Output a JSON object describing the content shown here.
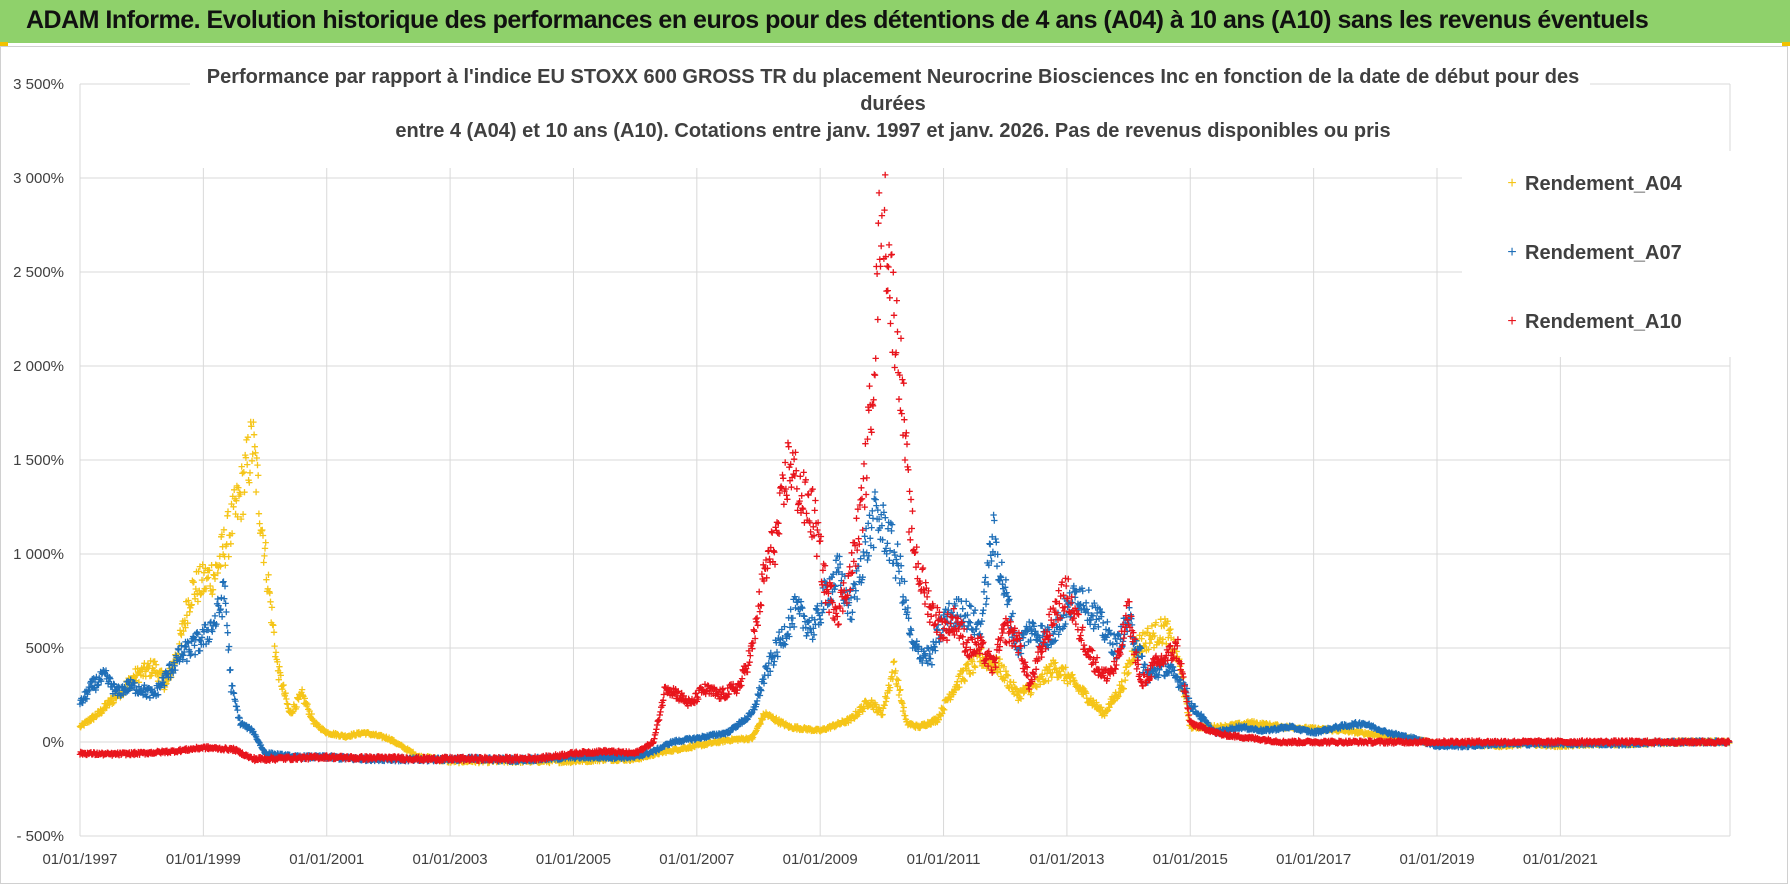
{
  "header": {
    "title": "ADAM Informe. Evolution historique des performances en euros pour des détentions de 4 ans (A04) à 10 ans (A10) sans les revenus éventuels"
  },
  "chart_data": {
    "type": "scatter",
    "title_lines": [
      "Performance par rapport à l'indice EU STOXX 600 GROSS TR  du placement Neurocrine Biosciences Inc en fonction de la date de début pour des",
      "durées",
      "entre 4 (A04) et 10 ans (A10). Cotations entre janv. 1997 et janv. 2026. Pas de revenus disponibles ou pris"
    ],
    "xlabel": "",
    "ylabel": "",
    "x_range": [
      1997.0,
      2023.75
    ],
    "ylim": [
      -500,
      3500
    ],
    "y_ticks": [
      {
        "value": -500,
        "label": "- 500%"
      },
      {
        "value": 0,
        "label": "0%"
      },
      {
        "value": 500,
        "label": "500%"
      },
      {
        "value": 1000,
        "label": "1 000%"
      },
      {
        "value": 1500,
        "label": "1 500%"
      },
      {
        "value": 2000,
        "label": "2 000%"
      },
      {
        "value": 2500,
        "label": "2 500%"
      },
      {
        "value": 3000,
        "label": "3 000%"
      },
      {
        "value": 3500,
        "label": "3 500%"
      }
    ],
    "x_ticks": [
      {
        "value": 1997,
        "label": "01/01/1997"
      },
      {
        "value": 1999,
        "label": "01/01/1999"
      },
      {
        "value": 2001,
        "label": "01/01/2001"
      },
      {
        "value": 2003,
        "label": "01/01/2003"
      },
      {
        "value": 2005,
        "label": "01/01/2005"
      },
      {
        "value": 2007,
        "label": "01/01/2007"
      },
      {
        "value": 2009,
        "label": "01/01/2009"
      },
      {
        "value": 2011,
        "label": "01/01/2011"
      },
      {
        "value": 2013,
        "label": "01/01/2013"
      },
      {
        "value": 2015,
        "label": "01/01/2015"
      },
      {
        "value": 2017,
        "label": "01/01/2017"
      },
      {
        "value": 2019,
        "label": "01/01/2019"
      },
      {
        "value": 2021,
        "label": "01/01/2021"
      }
    ],
    "grid": true,
    "legend_position": "top-right",
    "marker": "+",
    "series": [
      {
        "name": "Rendement_A04",
        "color": "#f5c518",
        "x": [
          1997.0,
          1997.3,
          1997.6,
          1997.9,
          1998.2,
          1998.4,
          1998.6,
          1998.8,
          1999.0,
          1999.2,
          1999.4,
          1999.6,
          1999.8,
          2000.0,
          2000.2,
          2000.4,
          2000.6,
          2000.8,
          2001.0,
          2001.3,
          2001.6,
          2002.0,
          2002.5,
          2003.0,
          2003.5,
          2004.0,
          2004.5,
          2005.0,
          2005.5,
          2006.0,
          2006.5,
          2007.0,
          2007.5,
          2007.9,
          2008.1,
          2008.5,
          2009.0,
          2009.5,
          2009.8,
          2010.0,
          2010.2,
          2010.4,
          2010.6,
          2010.9,
          2011.1,
          2011.3,
          2011.6,
          2011.9,
          2012.2,
          2012.5,
          2012.8,
          2013.0,
          2013.3,
          2013.6,
          2013.9,
          2014.1,
          2014.3,
          2014.6,
          2014.8,
          2015.0,
          2015.5,
          2016.0,
          2016.5,
          2017.0,
          2017.5,
          2018.0,
          2018.5,
          2019.0,
          2019.5,
          2020.0,
          2020.5,
          2021.0,
          2021.5,
          2022.0,
          2022.5,
          2023.0,
          2023.5,
          2023.75
        ],
        "y": [
          80,
          150,
          250,
          350,
          400,
          300,
          500,
          800,
          850,
          900,
          1100,
          1300,
          1600,
          1000,
          400,
          150,
          250,
          100,
          50,
          30,
          50,
          20,
          -80,
          -100,
          -100,
          -100,
          -100,
          -100,
          -90,
          -90,
          -50,
          -20,
          10,
          20,
          150,
          80,
          60,
          120,
          220,
          150,
          400,
          100,
          80,
          120,
          250,
          350,
          450,
          400,
          250,
          300,
          400,
          350,
          250,
          150,
          300,
          500,
          550,
          600,
          450,
          80,
          80,
          100,
          80,
          70,
          60,
          40,
          20,
          -10,
          -10,
          -20,
          -10,
          -20,
          -10,
          -10,
          -5,
          0,
          0,
          0
        ]
      },
      {
        "name": "Rendement_A07",
        "color": "#1f6fb8",
        "x": [
          1997.0,
          1997.2,
          1997.4,
          1997.6,
          1997.8,
          1998.0,
          1998.2,
          1998.4,
          1998.6,
          1998.8,
          1999.0,
          1999.2,
          1999.35,
          1999.45,
          1999.6,
          1999.8,
          2000.0,
          2000.5,
          2001.0,
          2001.5,
          2002.0,
          2002.5,
          2003.0,
          2003.5,
          2004.0,
          2004.5,
          2005.0,
          2005.5,
          2006.0,
          2006.3,
          2006.6,
          2007.0,
          2007.5,
          2007.9,
          2008.1,
          2008.3,
          2008.6,
          2008.9,
          2009.1,
          2009.3,
          2009.5,
          2009.7,
          2009.9,
          2010.1,
          2010.3,
          2010.5,
          2010.8,
          2011.0,
          2011.3,
          2011.6,
          2011.8,
          2012.0,
          2012.2,
          2012.4,
          2012.7,
          2013.0,
          2013.2,
          2013.5,
          2013.8,
          2014.0,
          2014.3,
          2014.6,
          2014.9,
          2015.0,
          2015.4,
          2015.8,
          2016.2,
          2016.6,
          2017.0,
          2017.4,
          2017.8,
          2018.2,
          2018.6,
          2019.0,
          2019.5,
          2020.0,
          2020.5,
          2021.0,
          2021.5,
          2022.0,
          2022.5,
          2023.0,
          2023.75
        ],
        "y": [
          200,
          300,
          350,
          260,
          300,
          280,
          250,
          350,
          450,
          500,
          550,
          650,
          800,
          300,
          100,
          60,
          -60,
          -80,
          -80,
          -90,
          -90,
          -95,
          -90,
          -90,
          -95,
          -90,
          -80,
          -80,
          -80,
          -50,
          0,
          20,
          50,
          150,
          350,
          500,
          700,
          600,
          800,
          900,
          700,
          1000,
          1200,
          1100,
          900,
          500,
          450,
          650,
          700,
          600,
          1100,
          800,
          500,
          600,
          550,
          700,
          800,
          650,
          500,
          650,
          350,
          400,
          300,
          200,
          50,
          80,
          60,
          80,
          50,
          80,
          100,
          50,
          20,
          -20,
          -20,
          -10,
          -10,
          -10,
          -10,
          -10,
          -5,
          0,
          0
        ]
      },
      {
        "name": "Rendement_A10",
        "color": "#e8141c",
        "x": [
          1997.0,
          1997.5,
          1998.0,
          1998.5,
          1999.0,
          1999.5,
          1999.8,
          2000.0,
          2000.5,
          2001.0,
          2001.5,
          2002.0,
          2002.5,
          2003.0,
          2003.5,
          2004.0,
          2004.5,
          2005.0,
          2005.5,
          2006.0,
          2006.3,
          2006.5,
          2006.7,
          2006.9,
          2007.1,
          2007.4,
          2007.7,
          2007.9,
          2008.1,
          2008.3,
          2008.5,
          2008.7,
          2008.9,
          2009.1,
          2009.3,
          2009.5,
          2009.7,
          2009.8,
          2009.9,
          2010.0,
          2010.15,
          2010.3,
          2010.45,
          2010.6,
          2010.8,
          2011.0,
          2011.2,
          2011.4,
          2011.6,
          2011.8,
          2012.0,
          2012.2,
          2012.4,
          2012.6,
          2012.8,
          2013.0,
          2013.2,
          2013.4,
          2013.6,
          2013.8,
          2014.0,
          2014.2,
          2014.4,
          2014.6,
          2014.8,
          2015.0,
          2015.5,
          2016.0,
          2016.5,
          2017.0,
          2018.0,
          2019.0,
          2020.0,
          2021.0,
          2022.0,
          2023.0,
          2023.75
        ],
        "y": [
          -60,
          -65,
          -60,
          -50,
          -30,
          -40,
          -90,
          -90,
          -85,
          -80,
          -85,
          -85,
          -90,
          -90,
          -90,
          -90,
          -85,
          -60,
          -50,
          -60,
          0,
          300,
          250,
          200,
          280,
          250,
          300,
          500,
          900,
          1100,
          1500,
          1300,
          1200,
          800,
          700,
          900,
          1300,
          1700,
          2200,
          3000,
          2400,
          2000,
          1200,
          900,
          700,
          600,
          650,
          500,
          500,
          400,
          600,
          550,
          300,
          500,
          700,
          800,
          600,
          450,
          350,
          400,
          700,
          300,
          400,
          450,
          500,
          100,
          40,
          20,
          0,
          0,
          0,
          0,
          0,
          0,
          0,
          0,
          0
        ]
      }
    ]
  }
}
